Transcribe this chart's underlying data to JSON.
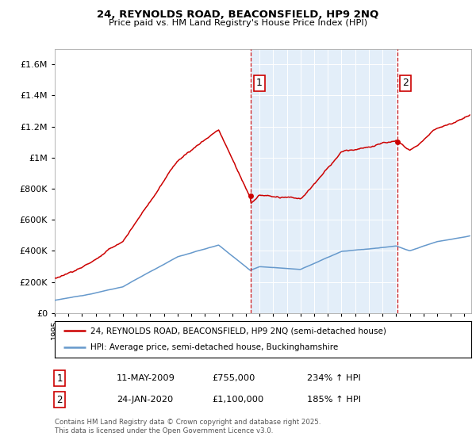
{
  "title_line1": "24, REYNOLDS ROAD, BEACONSFIELD, HP9 2NQ",
  "title_line2": "Price paid vs. HM Land Registry's House Price Index (HPI)",
  "red_line_color": "#cc0000",
  "blue_line_color": "#6699cc",
  "sale1_year": 2009.36,
  "sale1_price": 755000,
  "sale2_year": 2020.07,
  "sale2_price": 1100000,
  "legend_line1": "24, REYNOLDS ROAD, BEACONSFIELD, HP9 2NQ (semi-detached house)",
  "legend_line2": "HPI: Average price, semi-detached house, Buckinghamshire",
  "footer": "Contains HM Land Registry data © Crown copyright and database right 2025.\nThis data is licensed under the Open Government Licence v3.0.",
  "table_row1": [
    "1",
    "11-MAY-2009",
    "£755,000",
    "234% ↑ HPI"
  ],
  "table_row2": [
    "2",
    "24-JAN-2020",
    "£1,100,000",
    "185% ↑ HPI"
  ],
  "ylim_max": 1700000,
  "xlim_start": 1995.0,
  "xlim_end": 2025.5,
  "fill_alpha": 0.18,
  "plot_bg": "#ffffff",
  "fig_bg": "#ffffff"
}
